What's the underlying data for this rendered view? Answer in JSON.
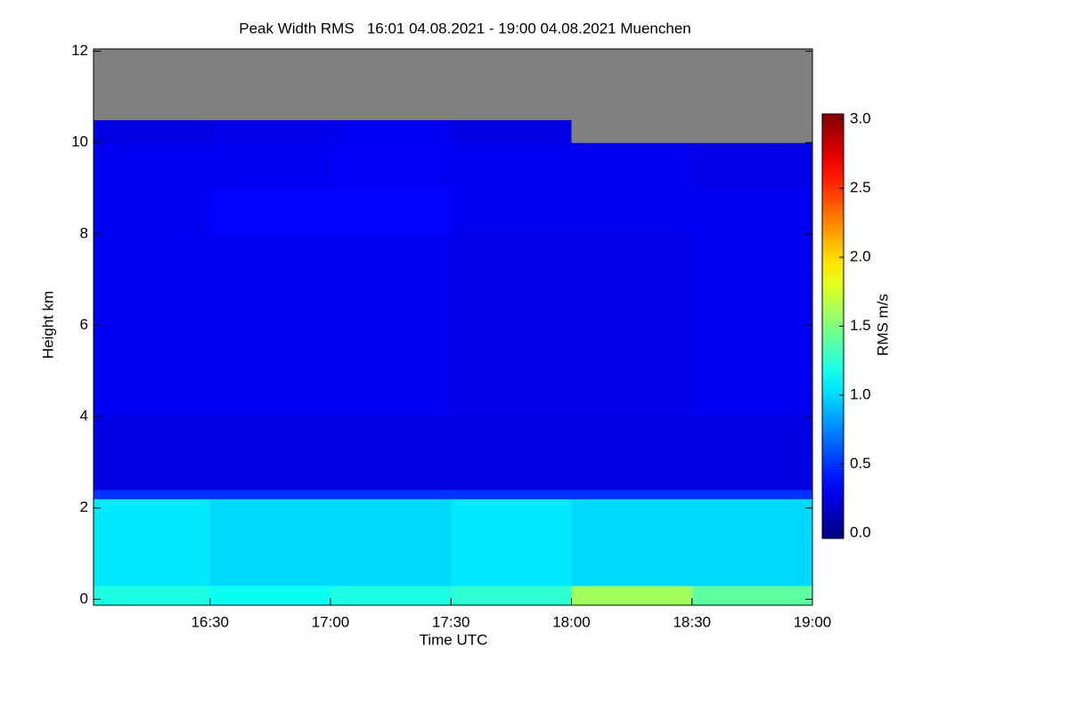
{
  "chart_data": {
    "type": "heatmap",
    "title": "Peak Width RMS   16:01 04.08.2021 - 19:00 04.08.2021 Muenchen",
    "x_label": "Time UTC",
    "y_label": "Height km",
    "colorbar_label": "RMS m/s",
    "x_bins": [
      16.0167,
      16.5,
      17,
      17.5,
      18,
      18.5,
      19.0
    ],
    "y_bins": [
      -0.13,
      0.3,
      2.2,
      2.4,
      4,
      8,
      9,
      10,
      10.5,
      12.05
    ],
    "z": [
      [
        1.2,
        1.15,
        1.2,
        1.25,
        1.6,
        1.4
      ],
      [
        1.05,
        1.0,
        1.0,
        1.05,
        1.0,
        1.0
      ],
      [
        0.5,
        0.5,
        0.5,
        0.5,
        0.5,
        0.5
      ],
      [
        0.25,
        0.25,
        0.25,
        0.25,
        0.25,
        0.25
      ],
      [
        0.3,
        0.3,
        0.3,
        0.28,
        0.28,
        0.3
      ],
      [
        0.3,
        0.35,
        0.35,
        0.3,
        0.3,
        0.3
      ],
      [
        0.3,
        0.3,
        0.32,
        0.3,
        0.3,
        0.28
      ],
      [
        0.25,
        0.28,
        0.3,
        0.25,
        null,
        null
      ],
      [
        null,
        null,
        null,
        null,
        null,
        null
      ]
    ],
    "colormap": "jet",
    "missing_color": "#808080",
    "xlim": [
      16.0167,
      19.0
    ],
    "xticks": [
      {
        "value": 16.5,
        "label": "16:30"
      },
      {
        "value": 17,
        "label": "17:00"
      },
      {
        "value": 17.5,
        "label": "17:30"
      },
      {
        "value": 18,
        "label": "18:00"
      },
      {
        "value": 18.5,
        "label": "18:30"
      },
      {
        "value": 19,
        "label": "19:00"
      }
    ],
    "ylim": [
      -0.13,
      12.05
    ],
    "yticks": [
      0,
      2,
      4,
      6,
      8,
      10,
      12
    ],
    "clim": [
      -0.04,
      3.04
    ],
    "cticks": [
      {
        "value": 0,
        "label": "0.0"
      },
      0.5,
      {
        "value": 1,
        "label": "1.0"
      },
      1.5,
      {
        "value": 2,
        "label": "2.0"
      },
      2.5,
      {
        "value": 3,
        "label": "3.0"
      }
    ]
  }
}
